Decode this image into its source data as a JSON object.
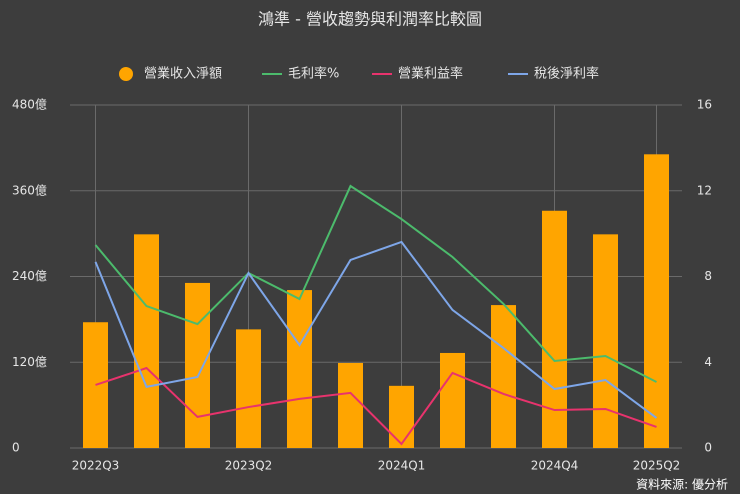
{
  "chart_data": {
    "type": "bar-line",
    "title": "鴻準 - 營收趨勢與利潤率比較圖",
    "source": "資料來源: 優分析",
    "categories": [
      "2022Q3",
      null,
      null,
      "2023Q2",
      null,
      null,
      "2024Q1",
      null,
      null,
      "2024Q4",
      null,
      "2025Q2"
    ],
    "series": [
      {
        "name": "營業收入淨額",
        "type": "bar",
        "color": "#ffa500",
        "values": [
          176,
          299,
          231,
          166,
          221,
          119,
          87,
          133,
          200,
          332,
          299,
          411
        ]
      },
      {
        "name": "毛利率%",
        "type": "line",
        "axis": "y2",
        "color": "#4cbb6c",
        "values": [
          9.47,
          6.62,
          5.78,
          8.16,
          6.95,
          12.22,
          10.68,
          8.91,
          6.72,
          4.06,
          4.29,
          3.08
        ]
      },
      {
        "name": "營業利益率",
        "type": "line",
        "axis": "y2",
        "color": "#e8336d",
        "values": [
          2.94,
          3.73,
          1.45,
          1.91,
          2.29,
          2.57,
          0.19,
          3.5,
          2.52,
          1.77,
          1.82,
          0.98
        ]
      },
      {
        "name": "稅後淨利率",
        "type": "line",
        "axis": "y2",
        "color": "#7ea6e8",
        "values": [
          8.68,
          2.85,
          3.31,
          8.16,
          4.8,
          8.77,
          9.61,
          6.44,
          4.66,
          2.75,
          3.17,
          1.4
        ]
      }
    ],
    "ylim": [
      0,
      480
    ],
    "yticks": [
      0,
      {
        "value": 120,
        "label": "120億"
      },
      {
        "value": 240,
        "label": "240億"
      },
      {
        "value": 360,
        "label": "360億"
      },
      {
        "value": 480,
        "label": "480億"
      }
    ],
    "y2lim": [
      0,
      16
    ],
    "y2ticks": [
      0,
      4,
      8,
      12,
      16
    ],
    "grid": true,
    "legend": "top"
  }
}
